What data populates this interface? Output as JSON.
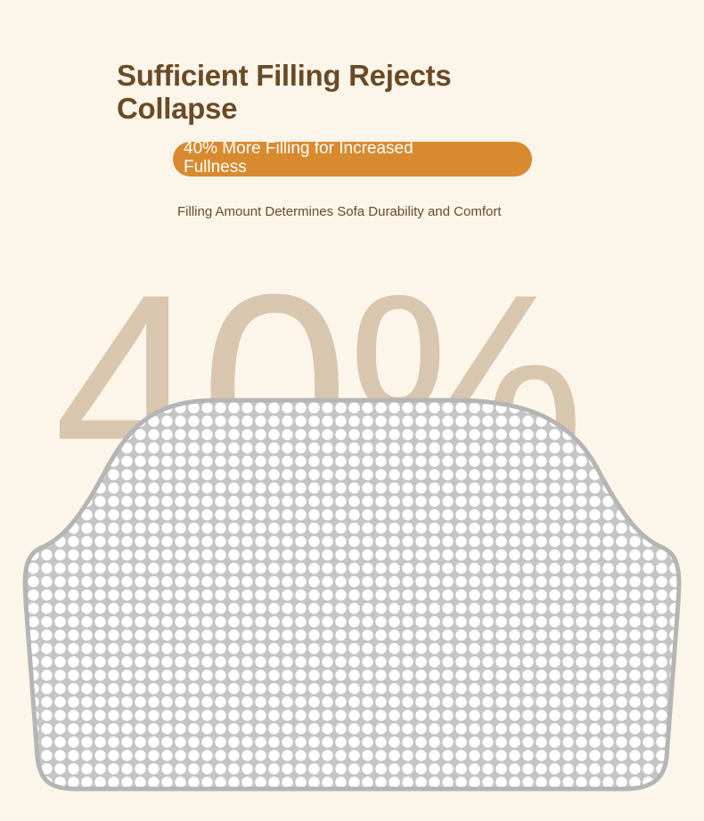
{
  "heading": {
    "title": "Sufficient Filling Rejects Collapse"
  },
  "badge": {
    "text": "40% More Filling for Increased Fullness"
  },
  "caption": {
    "text": "Filling Amount Determines Sofa Durability and Comfort"
  },
  "background_figure": {
    "text": "40%"
  },
  "colors": {
    "page_background": "#fcf6ea",
    "title_text": "#6b4a26",
    "badge_background": "#d98a2f",
    "badge_text": "#ffffff",
    "big_number": "#d9c6af",
    "cushion_fill": "#c5c5c5",
    "cushion_border": "#b5b5b5",
    "cushion_dots": "#ffffff"
  },
  "illustration": {
    "subject": "sofa cushion filling cross-section with dot pattern"
  }
}
